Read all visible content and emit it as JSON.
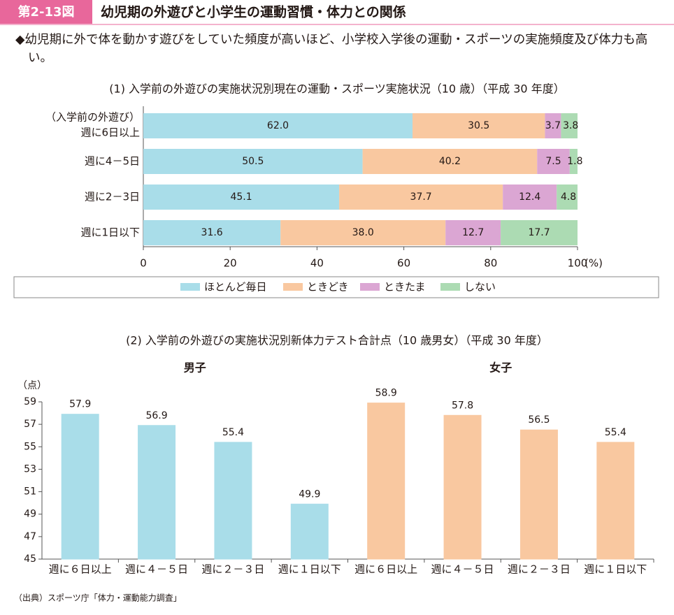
{
  "header": {
    "badge": "第2-13図",
    "title": "幼児期の外遊びと小学生の運動習慣・体力との関係"
  },
  "description": "◆幼児期に外で体を動かす遊びをしていた頻度が高いほど、小学校入学後の運動・スポーツの実施頻度及び体力も高い。",
  "chart_data": [
    {
      "type": "stacked_bar_horizontal",
      "title": "(1) 入学前の外遊びの実施状況別現在の運動・スポーツ実施状況（10 歳）（平成 30 年度）",
      "category_note": "（入学前の外遊び）",
      "categories": [
        "週に6日以上",
        "週に4－5日",
        "週に2－3日",
        "週に1日以下"
      ],
      "series": [
        {
          "name": "ほとんど毎日",
          "color": "#a9dde9",
          "values": [
            62.0,
            50.5,
            45.1,
            31.6
          ],
          "value_labels": [
            "62.0",
            "50.5",
            "45.1",
            "31.6"
          ]
        },
        {
          "name": "ときどき",
          "color": "#f9c8a0",
          "values": [
            30.5,
            40.2,
            37.7,
            38.0
          ],
          "value_labels": [
            "30.5",
            "40.2",
            "37.7",
            "38.0"
          ]
        },
        {
          "name": "ときたま",
          "color": "#dba6d3",
          "values": [
            3.7,
            7.5,
            12.4,
            12.7
          ],
          "value_labels": [
            "3.7",
            "7.5",
            "12.4",
            "12.7"
          ]
        },
        {
          "name": "しない",
          "color": "#acdbb3",
          "values": [
            3.8,
            1.8,
            4.8,
            17.7
          ],
          "value_labels": [
            "3.8",
            "1.8",
            "4.8",
            "17.7"
          ]
        }
      ],
      "xlim": [
        0,
        100
      ],
      "xticks": [
        0,
        20,
        40,
        60,
        80,
        100
      ],
      "x_unit": "(%)",
      "legend": "bottom"
    },
    {
      "type": "bar",
      "title": "(2) 入学前の外遊びの実施状況別新体力テスト合計点（10 歳男女）（平成 30 年度）",
      "y_label": "（点）",
      "groups": [
        {
          "name": "男子",
          "color": "#a9dde9",
          "categories": [
            "週に６日以上",
            "週に４－５日",
            "週に２－３日",
            "週に１日以下"
          ],
          "values": [
            57.9,
            56.9,
            55.4,
            49.9
          ]
        },
        {
          "name": "女子",
          "color": "#f9c8a0",
          "categories": [
            "週に６日以上",
            "週に４－５日",
            "週に２－３日",
            "週に１日以下"
          ],
          "values": [
            58.9,
            57.8,
            56.5,
            55.4
          ]
        }
      ],
      "ylim": [
        45,
        59
      ],
      "yticks": [
        45,
        47,
        49,
        51,
        53,
        55,
        57,
        59
      ]
    }
  ],
  "source": "（出典）スポーツ庁「体力・運動能力調査」"
}
